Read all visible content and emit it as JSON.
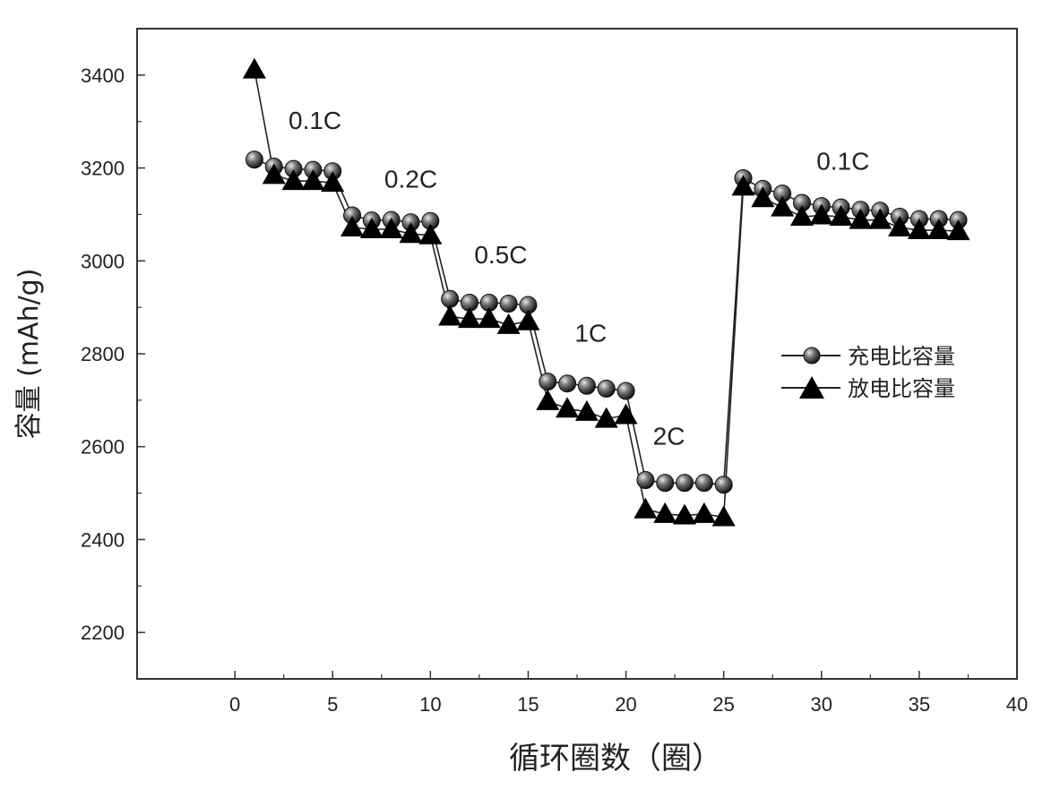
{
  "chart_data": {
    "type": "scatter",
    "xlabel": "循环圈数（圈）",
    "ylabel": "容量 (mAh/g)",
    "xlim": [
      -5,
      40
    ],
    "ylim": [
      2100,
      3500
    ],
    "x_ticks": [
      0,
      5,
      10,
      15,
      20,
      25,
      30,
      35,
      40
    ],
    "y_ticks": [
      2200,
      2400,
      2600,
      2800,
      3000,
      3200,
      3400
    ],
    "grid": false,
    "legend_position": "right",
    "series": [
      {
        "name": "充电比容量",
        "marker": "circle",
        "x": [
          1,
          2,
          3,
          4,
          5,
          6,
          7,
          8,
          9,
          10,
          11,
          12,
          13,
          14,
          15,
          16,
          17,
          18,
          19,
          20,
          21,
          22,
          23,
          24,
          25,
          26,
          27,
          28,
          29,
          30,
          31,
          32,
          33,
          34,
          35,
          36,
          37
        ],
        "values": [
          3218,
          3203,
          3198,
          3196,
          3193,
          3098,
          3087,
          3088,
          3083,
          3086,
          2918,
          2910,
          2910,
          2908,
          2905,
          2740,
          2736,
          2731,
          2725,
          2720,
          2528,
          2522,
          2522,
          2522,
          2518,
          3178,
          3155,
          3145,
          3125,
          3118,
          3115,
          3110,
          3108,
          3095,
          3090,
          3090,
          3088
        ]
      },
      {
        "name": "放电比容量",
        "marker": "triangle",
        "x": [
          1,
          2,
          3,
          4,
          5,
          6,
          7,
          8,
          9,
          10,
          11,
          12,
          13,
          14,
          15,
          16,
          17,
          18,
          19,
          20,
          21,
          22,
          23,
          24,
          25,
          26,
          27,
          28,
          29,
          30,
          31,
          32,
          33,
          34,
          35,
          36,
          37
        ],
        "values": [
          3412,
          3185,
          3172,
          3172,
          3168,
          3072,
          3068,
          3068,
          3058,
          3055,
          2880,
          2875,
          2875,
          2862,
          2870,
          2698,
          2682,
          2675,
          2660,
          2668,
          2465,
          2455,
          2452,
          2455,
          2448,
          3160,
          3135,
          3115,
          3095,
          3098,
          3095,
          3088,
          3088,
          3072,
          3066,
          3066,
          3064
        ]
      }
    ],
    "annotations": [
      {
        "text": "0.1C",
        "x": 4.1,
        "y": 3284
      },
      {
        "text": "0.2C",
        "x": 9.0,
        "y": 3158
      },
      {
        "text": "0.5C",
        "x": 13.6,
        "y": 2995
      },
      {
        "text": "1C",
        "x": 18.2,
        "y": 2826
      },
      {
        "text": "2C",
        "x": 22.2,
        "y": 2604
      },
      {
        "text": "0.1C",
        "x": 31.1,
        "y": 3196
      }
    ]
  }
}
